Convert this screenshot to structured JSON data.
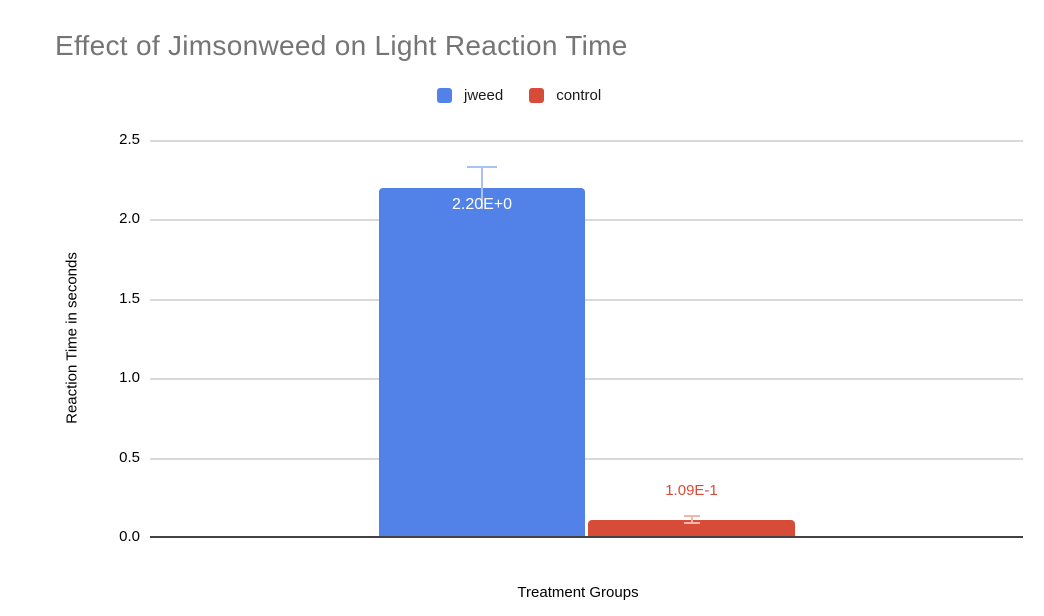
{
  "chart_data": {
    "type": "bar",
    "title": "Effect of Jimsonweed on Light Reaction Time",
    "xlabel": "Treatment Groups",
    "ylabel": "Reaction Time in seconds",
    "ylim": [
      0,
      2.5
    ],
    "ytick_step": 0.5,
    "yticks": [
      "2.5",
      "2.0",
      "1.5",
      "1.0",
      "0.5",
      "0.0"
    ],
    "grid": true,
    "legend_position": "top-center",
    "categories": [
      "Treatment Groups"
    ],
    "series": [
      {
        "name": "jweed",
        "value": 2.2,
        "data_label": "2.20E+0",
        "error": 0.135,
        "color": "#5282E8",
        "error_color": "#A9C2F3",
        "label_color": "#FFFFFF",
        "label_position": "inside"
      },
      {
        "name": "control",
        "value": 0.109,
        "data_label": "1.09E-1",
        "error": 0.03,
        "color": "#D64C38",
        "error_color": "#F0B5AB",
        "label_color": "#D64C38",
        "label_position": "outside"
      }
    ],
    "colors": {
      "title_text": "#757575",
      "axis_text": "#000000",
      "gridline": "#D9D9D9",
      "baseline": "#424242",
      "background": "#FFFFFF"
    }
  }
}
